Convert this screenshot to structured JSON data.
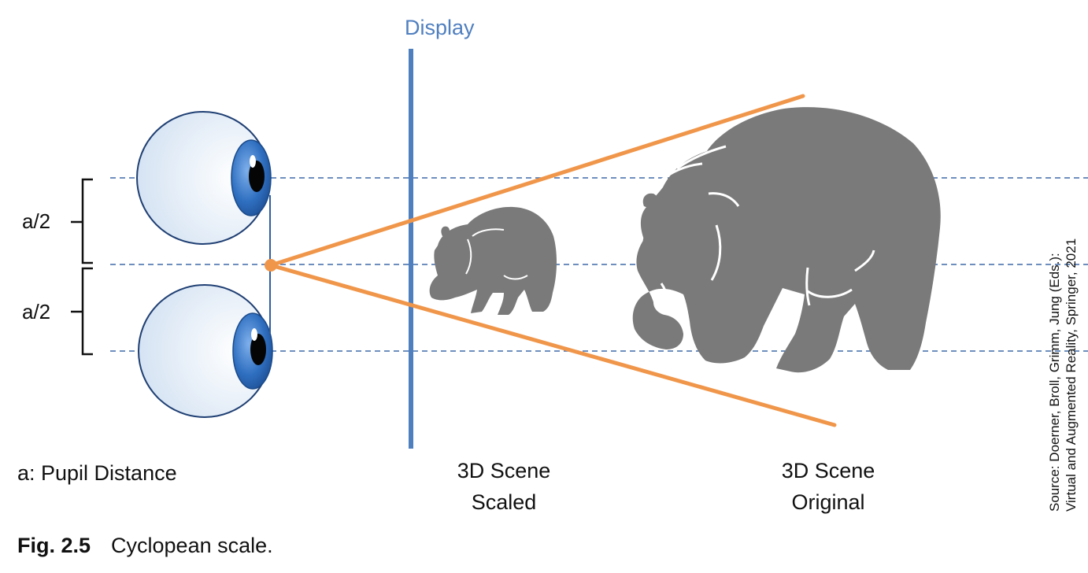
{
  "labels": {
    "display": "Display",
    "half_upper": "a/2",
    "half_lower": "a/2",
    "pupil_distance": "a: Pupil Distance",
    "scene_scaled": [
      "3D Scene",
      "Scaled"
    ],
    "scene_original": [
      "3D Scene",
      "Original"
    ]
  },
  "source": [
    "Source: Doerner, Broll, Grimm, Jung (Eds.):",
    "Virtual and Augmented Reality, Springer, 2021"
  ],
  "caption": {
    "number": "Fig. 2.5",
    "text": "Cyclopean scale."
  },
  "colors": {
    "display_line": "#4f7fbf",
    "sight_lines": "#f0964a",
    "bear": "#7a7a7a",
    "guide_lines": "#3f6aa8",
    "iris": "#2f6fc0"
  }
}
